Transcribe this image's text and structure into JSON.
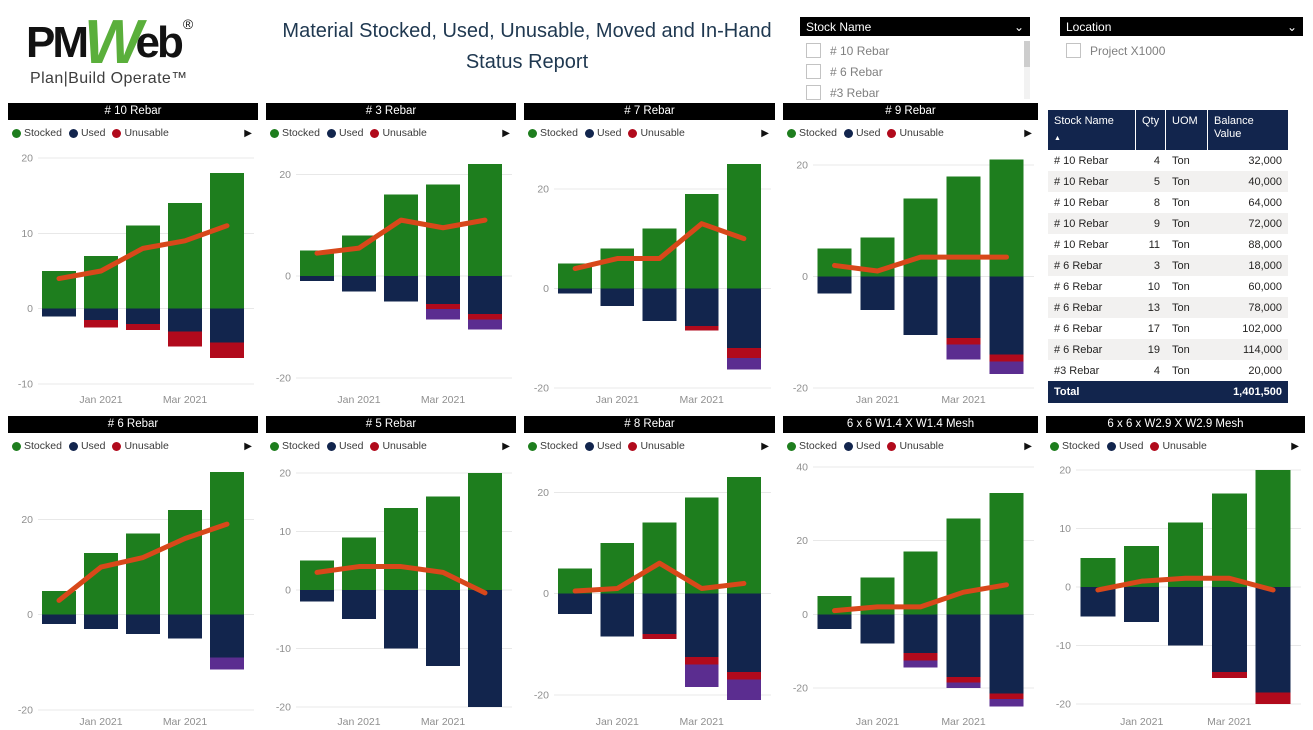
{
  "header": {
    "logo": {
      "pm": "PM",
      "w": "W",
      "eb": "eb",
      "reg": "®",
      "tagline": "Plan|Build Operate™"
    },
    "title_line1": "Material Stocked, Used, Unusable, Moved and In-Hand",
    "title_line2": "Status Report"
  },
  "slicers": {
    "stock": {
      "label": "Stock Name",
      "chevron": "⌄",
      "items": [
        {
          "label": "# 10 Rebar"
        },
        {
          "label": "# 6 Rebar"
        },
        {
          "label": "#3 Rebar"
        }
      ]
    },
    "location": {
      "label": "Location",
      "chevron": "⌄",
      "items": [
        {
          "label": "Project X1000"
        }
      ]
    }
  },
  "chart_legend": {
    "items": [
      {
        "name": "Stocked",
        "color": "#1e7e1e"
      },
      {
        "name": "Used",
        "color": "#12254d"
      },
      {
        "name": "Unusable",
        "color": "#b10a1c"
      }
    ],
    "more": "▶"
  },
  "chart_data": [
    {
      "type": "bar",
      "title": "# 10 Rebar",
      "ylim": [
        -10.5,
        20.5
      ],
      "yticks": [
        20,
        10,
        0,
        -10
      ],
      "xticks": [
        {
          "label": "Jan 2021",
          "slot": 1
        },
        {
          "label": "Mar 2021",
          "slot": 3
        }
      ],
      "stocked": [
        5,
        7,
        11,
        14,
        18
      ],
      "used": [
        -1,
        -1.5,
        -2,
        -3,
        -4.5
      ],
      "unusable": [
        0,
        -1,
        -0.8,
        -2,
        -2
      ],
      "moved": [
        0,
        0,
        0,
        0,
        0
      ],
      "inhand_line": [
        4,
        5,
        8,
        9,
        11
      ]
    },
    {
      "type": "bar",
      "title": "# 3 Rebar",
      "ylim": [
        -22,
        24
      ],
      "yticks": [
        20,
        0,
        -20
      ],
      "xticks": [
        {
          "label": "Jan 2021",
          "slot": 1
        },
        {
          "label": "Mar 2021",
          "slot": 3
        }
      ],
      "stocked": [
        5,
        8,
        16,
        18,
        22
      ],
      "used": [
        -1,
        -3,
        -5,
        -5.5,
        -7.5
      ],
      "unusable": [
        0,
        0,
        0,
        -1,
        -1
      ],
      "moved": [
        0,
        0,
        0,
        -2,
        -2
      ],
      "inhand_line": [
        4.5,
        5.5,
        11,
        9.5,
        11
      ]
    },
    {
      "type": "bar",
      "title": "# 7 Rebar",
      "ylim": [
        -20,
        27
      ],
      "yticks": [
        20,
        0,
        -20
      ],
      "xticks": [
        {
          "label": "Jan 2021",
          "slot": 1
        },
        {
          "label": "Mar 2021",
          "slot": 3
        }
      ],
      "stocked": [
        5,
        8,
        12,
        19,
        25
      ],
      "used": [
        -1,
        -3.5,
        -6.5,
        -7.5,
        -12
      ],
      "unusable": [
        0,
        0,
        0,
        -1,
        -2
      ],
      "moved": [
        0,
        0,
        0,
        0,
        -2.3
      ],
      "inhand_line": [
        4,
        6,
        6,
        13,
        10
      ]
    },
    {
      "type": "bar",
      "title": "# 9 Rebar",
      "ylim": [
        -20,
        22
      ],
      "yticks": [
        20,
        0,
        -20
      ],
      "xticks": [
        {
          "label": "Jan 2021",
          "slot": 1
        },
        {
          "label": "Mar 2021",
          "slot": 3
        }
      ],
      "stocked": [
        5,
        7,
        14,
        18,
        21
      ],
      "used": [
        -3,
        -6,
        -10.5,
        -11,
        -14
      ],
      "unusable": [
        0,
        0,
        0,
        -1.2,
        -1.2
      ],
      "moved": [
        0,
        0,
        0,
        -2.7,
        -2.3
      ],
      "inhand_line": [
        2,
        1,
        3.5,
        3.5,
        3.5
      ]
    },
    {
      "type": "bar",
      "title": "# 6 Rebar",
      "ylim": [
        -20,
        31
      ],
      "yticks": [
        20,
        0,
        -20
      ],
      "xticks": [
        {
          "label": "Jan 2021",
          "slot": 1
        },
        {
          "label": "Mar 2021",
          "slot": 3
        }
      ],
      "stocked": [
        5,
        13,
        17,
        22,
        30
      ],
      "used": [
        -2,
        -3,
        -4,
        -5,
        -9
      ],
      "unusable": [
        0,
        0,
        0,
        0,
        0
      ],
      "moved": [
        0,
        0,
        0,
        0,
        -2.5
      ],
      "inhand_line": [
        3,
        10,
        12,
        16,
        19
      ]
    },
    {
      "type": "bar",
      "title": "# 5 Rebar",
      "ylim": [
        -20.5,
        21
      ],
      "yticks": [
        20,
        10,
        0,
        -10,
        -20
      ],
      "xticks": [
        {
          "label": "Jan 2021",
          "slot": 1
        },
        {
          "label": "Mar 2021",
          "slot": 3
        }
      ],
      "stocked": [
        5,
        9,
        14,
        16,
        20
      ],
      "used": [
        -2,
        -5,
        -10,
        -13,
        -20
      ],
      "unusable": [
        0,
        0,
        0,
        0,
        0
      ],
      "moved": [
        0,
        0,
        0,
        0,
        0
      ],
      "inhand_line": [
        3,
        4,
        4,
        3,
        -0.5
      ]
    },
    {
      "type": "bar",
      "title": "# 8 Rebar",
      "ylim": [
        -23,
        25
      ],
      "yticks": [
        20,
        0,
        -20
      ],
      "xticks": [
        {
          "label": "Jan 2021",
          "slot": 1
        },
        {
          "label": "Mar 2021",
          "slot": 3
        }
      ],
      "stocked": [
        5,
        10,
        14,
        19,
        23
      ],
      "used": [
        -4,
        -8.5,
        -8,
        -12.5,
        -15.5
      ],
      "unusable": [
        0,
        0,
        -1,
        -1.5,
        -1.5
      ],
      "moved": [
        0,
        0,
        0,
        -4.5,
        -4
      ],
      "inhand_line": [
        0.5,
        1,
        6,
        1,
        2
      ]
    },
    {
      "type": "bar",
      "title": "6 x 6 W1.4 X W1.4 Mesh",
      "ylim": [
        -26,
        40
      ],
      "yticks": [
        40,
        20,
        0,
        -20
      ],
      "xticks": [
        {
          "label": "Jan 2021",
          "slot": 1
        },
        {
          "label": "Mar 2021",
          "slot": 3
        }
      ],
      "stocked": [
        5,
        10,
        17,
        26,
        33
      ],
      "used": [
        -4,
        -8,
        -10.5,
        -17,
        -21.5
      ],
      "unusable": [
        0,
        0,
        -2,
        -1.5,
        -1.5
      ],
      "moved": [
        0,
        0,
        -2,
        -1.5,
        -2
      ],
      "inhand_line": [
        1,
        2,
        2,
        6,
        8
      ]
    },
    {
      "type": "bar",
      "title": "6 x 6 x W2.9 X W2.9 Mesh",
      "ylim": [
        -21,
        20.5
      ],
      "yticks": [
        20,
        10,
        0,
        -10,
        -20
      ],
      "xticks": [
        {
          "label": "Jan 2021",
          "slot": 1
        },
        {
          "label": "Mar 2021",
          "slot": 3
        }
      ],
      "stocked": [
        5,
        7,
        11,
        16,
        20
      ],
      "used": [
        -5,
        -6,
        -10,
        -14.5,
        -18
      ],
      "unusable": [
        0,
        0,
        0,
        -1,
        -2
      ],
      "moved": [
        0,
        0,
        0,
        0,
        0
      ],
      "inhand_line": [
        -0.5,
        1,
        1.5,
        1.5,
        -0.5
      ]
    }
  ],
  "table": {
    "headers": [
      "Stock Name",
      "Qty",
      "UOM",
      "Balance Value"
    ],
    "sort_icon": "▲",
    "rows": [
      [
        "# 10 Rebar",
        "4",
        "Ton",
        "32,000"
      ],
      [
        "# 10 Rebar",
        "5",
        "Ton",
        "40,000"
      ],
      [
        "# 10 Rebar",
        "8",
        "Ton",
        "64,000"
      ],
      [
        "# 10 Rebar",
        "9",
        "Ton",
        "72,000"
      ],
      [
        "# 10 Rebar",
        "11",
        "Ton",
        "88,000"
      ],
      [
        "# 6 Rebar",
        "3",
        "Ton",
        "18,000"
      ],
      [
        "# 6 Rebar",
        "10",
        "Ton",
        "60,000"
      ],
      [
        "# 6 Rebar",
        "13",
        "Ton",
        "78,000"
      ],
      [
        "# 6 Rebar",
        "17",
        "Ton",
        "102,000"
      ],
      [
        "# 6 Rebar",
        "19",
        "Ton",
        "114,000"
      ],
      [
        "#3 Rebar",
        "4",
        "Ton",
        "20,000"
      ]
    ],
    "total_label": "Total",
    "total_value": "1,401,500",
    "scroll_up": "⌃",
    "scroll_down": "⌄"
  },
  "colors": {
    "stocked": "#1e7e1e",
    "used": "#12254d",
    "unusable": "#b10a1c",
    "moved": "#5b2d90",
    "inhand_line": "#d8481a",
    "table_header_bg": "#12254d",
    "grid": "#e8e8e8",
    "axis_text": "#8f8f8f",
    "logo_green": "#5aaf3b"
  }
}
